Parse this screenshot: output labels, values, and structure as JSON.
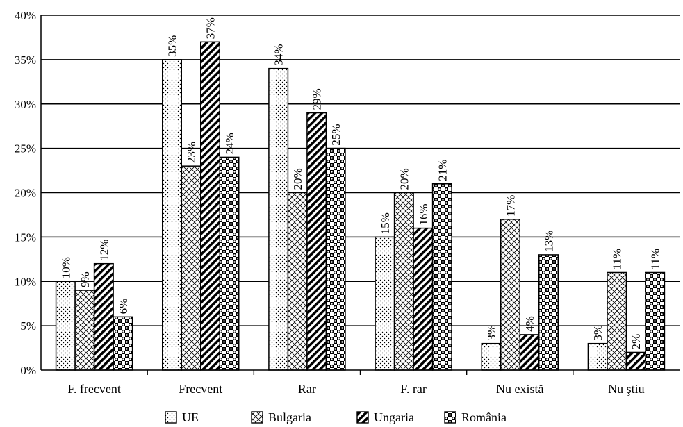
{
  "chart_data": {
    "type": "bar",
    "categories": [
      "F. frecvent",
      "Frecvent",
      "Rar",
      "F. rar",
      "Nu există",
      "Nu ştiu"
    ],
    "series": [
      {
        "name": "UE",
        "pattern": "dots",
        "values": [
          10,
          35,
          34,
          15,
          3,
          3
        ]
      },
      {
        "name": "Bulgaria",
        "pattern": "crosshatch",
        "values": [
          9,
          23,
          20,
          20,
          17,
          11
        ]
      },
      {
        "name": "Ungaria",
        "pattern": "diagonal",
        "values": [
          12,
          37,
          29,
          16,
          4,
          2
        ]
      },
      {
        "name": "România",
        "pattern": "checker",
        "values": [
          6,
          24,
          25,
          21,
          13,
          11
        ]
      }
    ],
    "value_suffix": "%",
    "y_ticks": [
      "0%",
      "5%",
      "10%",
      "15%",
      "20%",
      "25%",
      "30%",
      "35%",
      "40%"
    ],
    "ylim": [
      0,
      40
    ],
    "y_step": 5,
    "grid": true,
    "legend_position": "bottom"
  }
}
